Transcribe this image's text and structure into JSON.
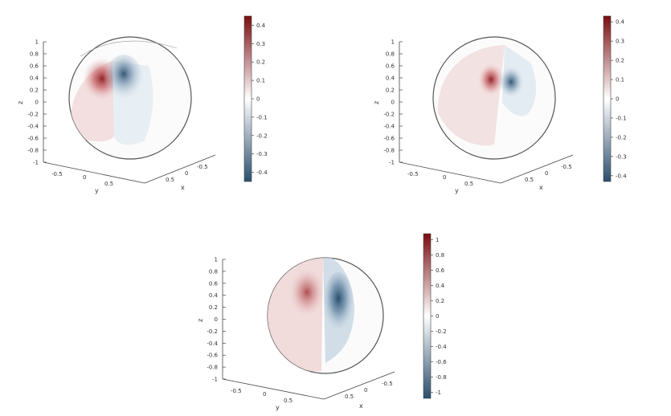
{
  "chart_data": [
    {
      "type": "heatmap",
      "surface": "sphere",
      "xlabel": "x",
      "ylabel": "y",
      "zlabel": "z",
      "x_ticks": [
        "-0.5",
        "0",
        "0.5"
      ],
      "y_ticks": [
        "-0.5",
        "0",
        "0.5"
      ],
      "z_ticks": [
        "-1",
        "-0.8",
        "-0.6",
        "-0.4",
        "-0.2",
        "0",
        "0.2",
        "0.4",
        "0.6",
        "0.8",
        "1"
      ],
      "colorbar": {
        "min": -0.45,
        "max": 0.45,
        "ticks": [
          "0.4",
          "0.3",
          "0.2",
          "0.1",
          "0",
          "-0.1",
          "-0.2",
          "-0.3",
          "-0.4"
        ],
        "tick_values": [
          0.4,
          0.3,
          0.2,
          0.1,
          0,
          -0.1,
          -0.2,
          -0.3,
          -0.4
        ]
      },
      "colormap": [
        "#2b4f6e",
        "#ffffff",
        "#7a0d10"
      ],
      "values_shown": {
        "max_positive": 0.4,
        "min_negative": -0.4
      }
    },
    {
      "type": "heatmap",
      "surface": "sphere",
      "xlabel": "x",
      "ylabel": "y",
      "zlabel": "z",
      "x_ticks": [
        "-0.5",
        "0",
        "0.5"
      ],
      "y_ticks": [
        "-0.5",
        "0",
        "0.5"
      ],
      "z_ticks": [
        "-1",
        "-0.8",
        "-0.6",
        "-0.4",
        "-0.2",
        "0",
        "0.2",
        "0.4",
        "0.6",
        "0.8",
        "1"
      ],
      "colorbar": {
        "min": -0.43,
        "max": 0.43,
        "ticks": [
          "0.4",
          "0.3",
          "0.2",
          "0.1",
          "0",
          "-0.1",
          "-0.2",
          "-0.3",
          "-0.4"
        ],
        "tick_values": [
          0.4,
          0.3,
          0.2,
          0.1,
          0,
          -0.1,
          -0.2,
          -0.3,
          -0.4
        ]
      },
      "colormap": [
        "#2b4f6e",
        "#ffffff",
        "#7a0d10"
      ],
      "values_shown": {
        "max_positive": 0.35,
        "min_negative": -0.35
      }
    },
    {
      "type": "heatmap",
      "surface": "sphere",
      "xlabel": "x",
      "ylabel": "y",
      "zlabel": "z",
      "x_ticks": [
        "-0.5",
        "0",
        "0.5"
      ],
      "y_ticks": [
        "-0.5",
        "0",
        "0.5"
      ],
      "z_ticks": [
        "-1",
        "-0.8",
        "-0.6",
        "-0.4",
        "-0.2",
        "0",
        "0.2",
        "0.4",
        "0.6",
        "0.8",
        "1"
      ],
      "colorbar": {
        "min": -1.08,
        "max": 1.08,
        "ticks": [
          "1",
          "0.8",
          "0.6",
          "0.4",
          "0.2",
          "0",
          "-0.2",
          "-0.4",
          "-0.6",
          "-0.8",
          "-1"
        ],
        "tick_values": [
          1,
          0.8,
          0.6,
          0.4,
          0.2,
          0,
          -0.2,
          -0.4,
          -0.6,
          -0.8,
          -1
        ]
      },
      "colormap": [
        "#2b4f6e",
        "#ffffff",
        "#7a0d10"
      ],
      "values_shown": {
        "max_positive": 0.6,
        "min_negative": -1.0
      }
    }
  ]
}
